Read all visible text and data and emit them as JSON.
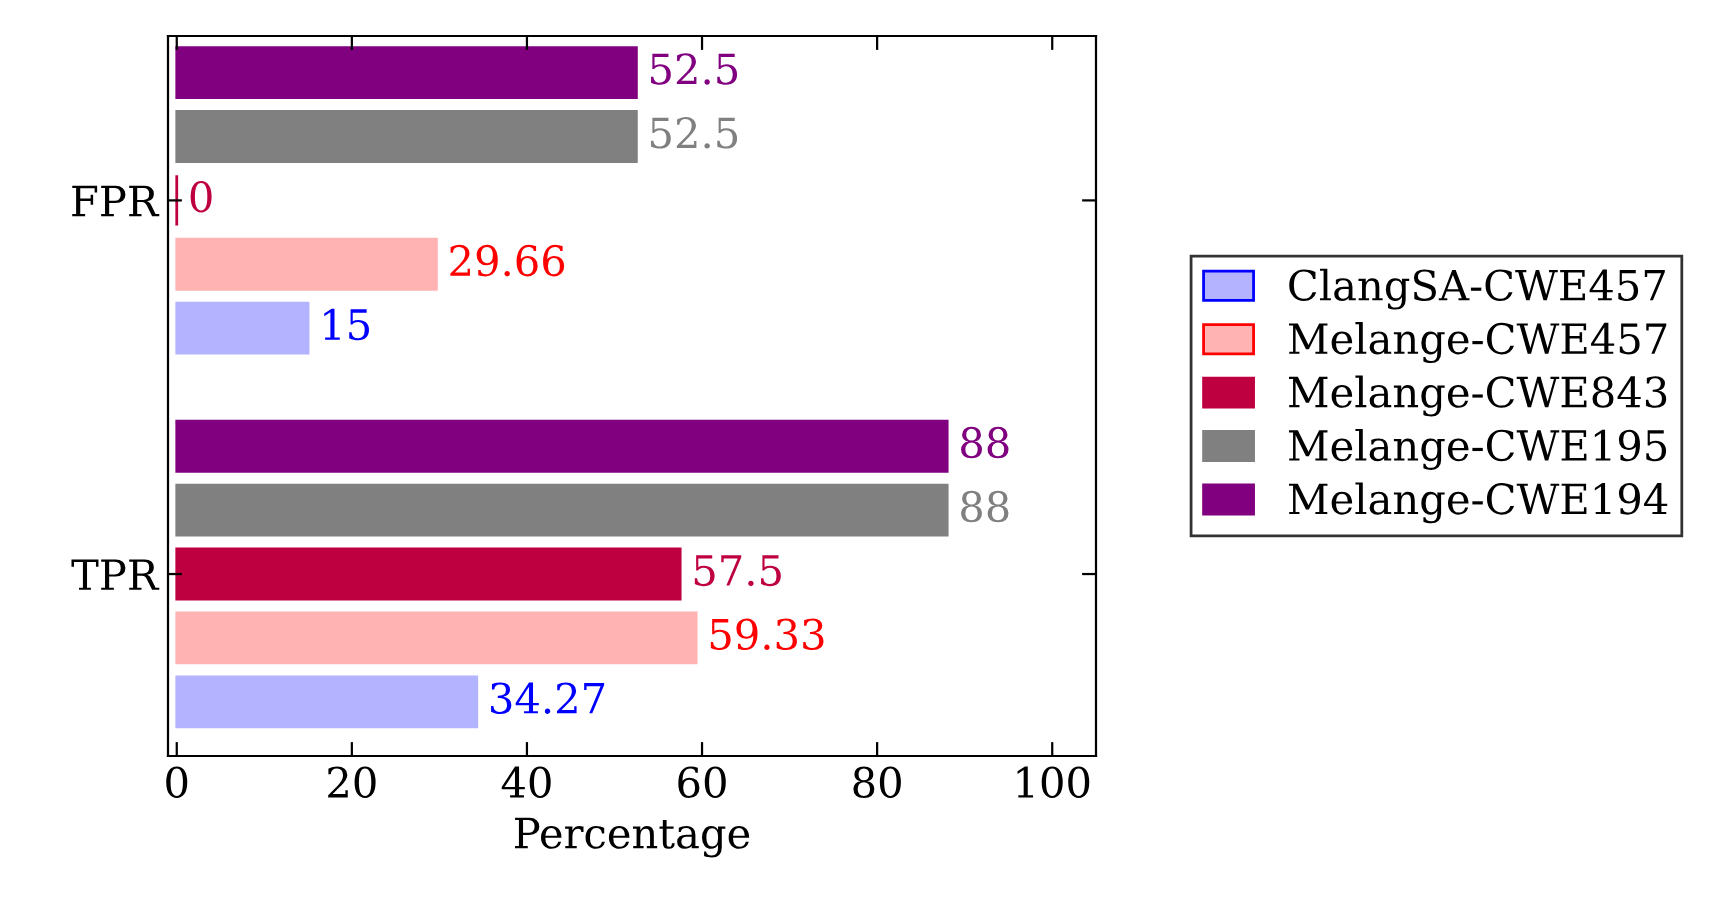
{
  "chart_data": {
    "type": "bar",
    "orientation": "horizontal",
    "categories": [
      "FPR",
      "TPR"
    ],
    "xlabel": "Percentage",
    "series": [
      {
        "name": "ClangSA-CWE457",
        "color": "#b3b3ff",
        "values": [
          15,
          34.27
        ]
      },
      {
        "name": "Melange-CWE457",
        "color": "#ffb3b3",
        "values": [
          29.66,
          59.33
        ]
      },
      {
        "name": "Melange-CWE843",
        "color": "#bf0040",
        "values": [
          0,
          57.5
        ]
      },
      {
        "name": "Melange-CWE195",
        "color": "#808080",
        "values": [
          52.5,
          88
        ]
      },
      {
        "name": "Melange-CWE194",
        "color": "#800080",
        "values": [
          52.5,
          88
        ]
      }
    ],
    "xlim": [
      -1,
      105
    ],
    "xticks": [
      0,
      20,
      40,
      60,
      80,
      100
    ],
    "data_labels": true,
    "legend": "right",
    "grid": false
  }
}
